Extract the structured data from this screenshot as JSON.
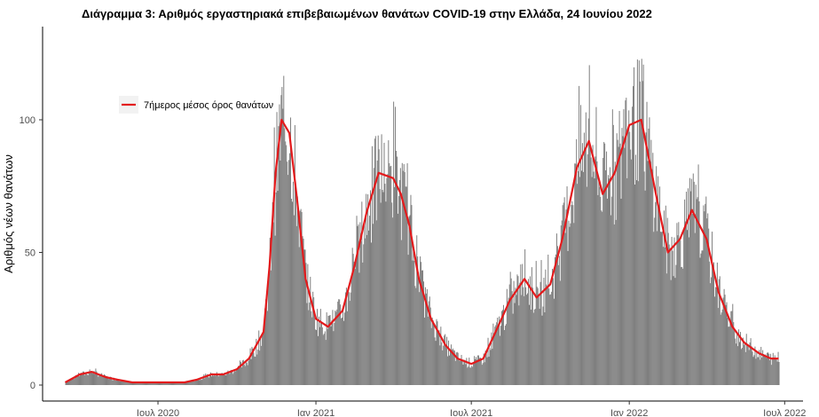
{
  "chart_data": {
    "type": "bar",
    "title": "Διάγραμμα 3: Αριθμός εργαστηριακά επιβεβαιωμένων θανάτων COVID-19 στην Ελλάδα, 24 Ιουνίου 2022",
    "xlabel": "",
    "ylabel": "Αριθμός νέων θανάτων",
    "ylim": [
      0,
      130
    ],
    "yticks": [
      0,
      50,
      100
    ],
    "xlim": [
      "2020-03-01",
      "2022-07-10"
    ],
    "xticks": [
      {
        "date": "2020-07-01",
        "label": "Ιουλ 2020"
      },
      {
        "date": "2021-01-01",
        "label": "Ιαν 2021"
      },
      {
        "date": "2021-07-01",
        "label": "Ιουλ 2021"
      },
      {
        "date": "2022-01-01",
        "label": "Ιαν 2022"
      },
      {
        "date": "2022-07-01",
        "label": "Ιουλ 2022"
      }
    ],
    "grid": false,
    "legend_position": "top-left",
    "colors": {
      "bars": "#7f7f7f",
      "line": "#e31a1c"
    },
    "series": [
      {
        "kind": "bar",
        "values_description": "daily deaths",
        "x": [
          "2020-03-15",
          "2020-04-01",
          "2020-04-15",
          "2020-05-01",
          "2020-05-15",
          "2020-06-01",
          "2020-06-15",
          "2020-07-01",
          "2020-07-15",
          "2020-08-01",
          "2020-08-15",
          "2020-09-01",
          "2020-09-15",
          "2020-10-01",
          "2020-10-15",
          "2020-11-01",
          "2020-11-08",
          "2020-11-15",
          "2020-11-22",
          "2020-12-01",
          "2020-12-10",
          "2020-12-20",
          "2021-01-01",
          "2021-01-15",
          "2021-02-01",
          "2021-02-15",
          "2021-03-01",
          "2021-03-15",
          "2021-04-01",
          "2021-04-10",
          "2021-04-20",
          "2021-05-01",
          "2021-05-15",
          "2021-06-01",
          "2021-06-15",
          "2021-07-01",
          "2021-07-15",
          "2021-08-01",
          "2021-08-15",
          "2021-09-01",
          "2021-09-15",
          "2021-10-01",
          "2021-10-15",
          "2021-11-01",
          "2021-11-15",
          "2021-12-01",
          "2021-12-15",
          "2022-01-01",
          "2022-01-15",
          "2022-02-01",
          "2022-02-15",
          "2022-03-01",
          "2022-03-15",
          "2022-04-01",
          "2022-04-15",
          "2022-05-01",
          "2022-05-15",
          "2022-06-01",
          "2022-06-15",
          "2022-06-24"
        ],
        "y": [
          1,
          4,
          5,
          3,
          2,
          1,
          1,
          1,
          1,
          1,
          2,
          4,
          4,
          6,
          10,
          20,
          45,
          80,
          100,
          95,
          70,
          40,
          25,
          22,
          28,
          45,
          65,
          80,
          78,
          72,
          60,
          40,
          25,
          15,
          10,
          8,
          10,
          22,
          32,
          40,
          33,
          38,
          55,
          82,
          92,
          72,
          80,
          98,
          100,
          72,
          50,
          55,
          66,
          55,
          35,
          22,
          16,
          12,
          10,
          10
        ]
      },
      {
        "name": "7ήμερος μέσος όρος θανάτων",
        "kind": "line",
        "x": [
          "2020-03-15",
          "2020-04-01",
          "2020-04-15",
          "2020-05-01",
          "2020-05-15",
          "2020-06-01",
          "2020-06-15",
          "2020-07-01",
          "2020-07-15",
          "2020-08-01",
          "2020-08-15",
          "2020-09-01",
          "2020-09-15",
          "2020-10-01",
          "2020-10-15",
          "2020-11-01",
          "2020-11-08",
          "2020-11-15",
          "2020-11-22",
          "2020-12-01",
          "2020-12-10",
          "2020-12-20",
          "2021-01-01",
          "2021-01-15",
          "2021-02-01",
          "2021-02-15",
          "2021-03-01",
          "2021-03-15",
          "2021-04-01",
          "2021-04-10",
          "2021-04-20",
          "2021-05-01",
          "2021-05-15",
          "2021-06-01",
          "2021-06-15",
          "2021-07-01",
          "2021-07-15",
          "2021-08-01",
          "2021-08-15",
          "2021-09-01",
          "2021-09-15",
          "2021-10-01",
          "2021-10-15",
          "2021-11-01",
          "2021-11-15",
          "2021-12-01",
          "2021-12-15",
          "2022-01-01",
          "2022-01-15",
          "2022-02-01",
          "2022-02-15",
          "2022-03-01",
          "2022-03-15",
          "2022-04-01",
          "2022-04-15",
          "2022-05-01",
          "2022-05-15",
          "2022-06-01",
          "2022-06-15",
          "2022-06-24"
        ],
        "y": [
          1,
          4,
          5,
          3,
          2,
          1,
          1,
          1,
          1,
          1,
          2,
          4,
          4,
          6,
          10,
          20,
          45,
          80,
          100,
          95,
          70,
          40,
          25,
          22,
          28,
          45,
          65,
          80,
          78,
          72,
          60,
          40,
          25,
          15,
          10,
          8,
          10,
          22,
          32,
          40,
          33,
          38,
          55,
          82,
          92,
          72,
          80,
          98,
          100,
          72,
          50,
          55,
          66,
          55,
          35,
          22,
          16,
          12,
          10,
          10
        ]
      }
    ]
  }
}
